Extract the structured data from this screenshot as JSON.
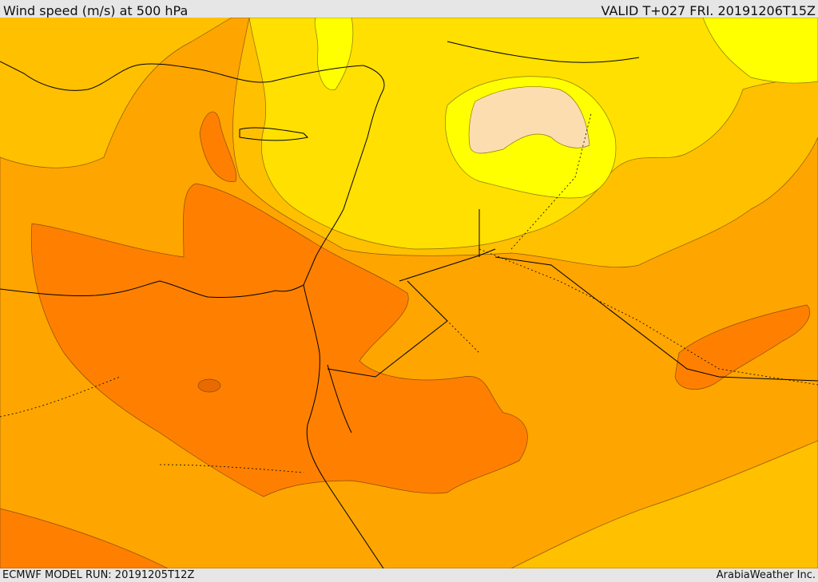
{
  "header": {
    "title": "Wind speed (m/s) at 500 hPa",
    "valid": "VALID T+027 FRI. 20191206T15Z"
  },
  "footer": {
    "model_run": "ECMWF MODEL RUN: 20191205T12Z",
    "credit": "ArabiaWeather Inc."
  },
  "colors": {
    "band_lightest": "#FCDDB0",
    "band_yellow": "#FFFF00",
    "band_gold": "#FFE000",
    "band_amber": "#FFC000",
    "band_orange": "#FFA500",
    "band_dark_orange": "#FF8000",
    "coastline": "#000000"
  }
}
